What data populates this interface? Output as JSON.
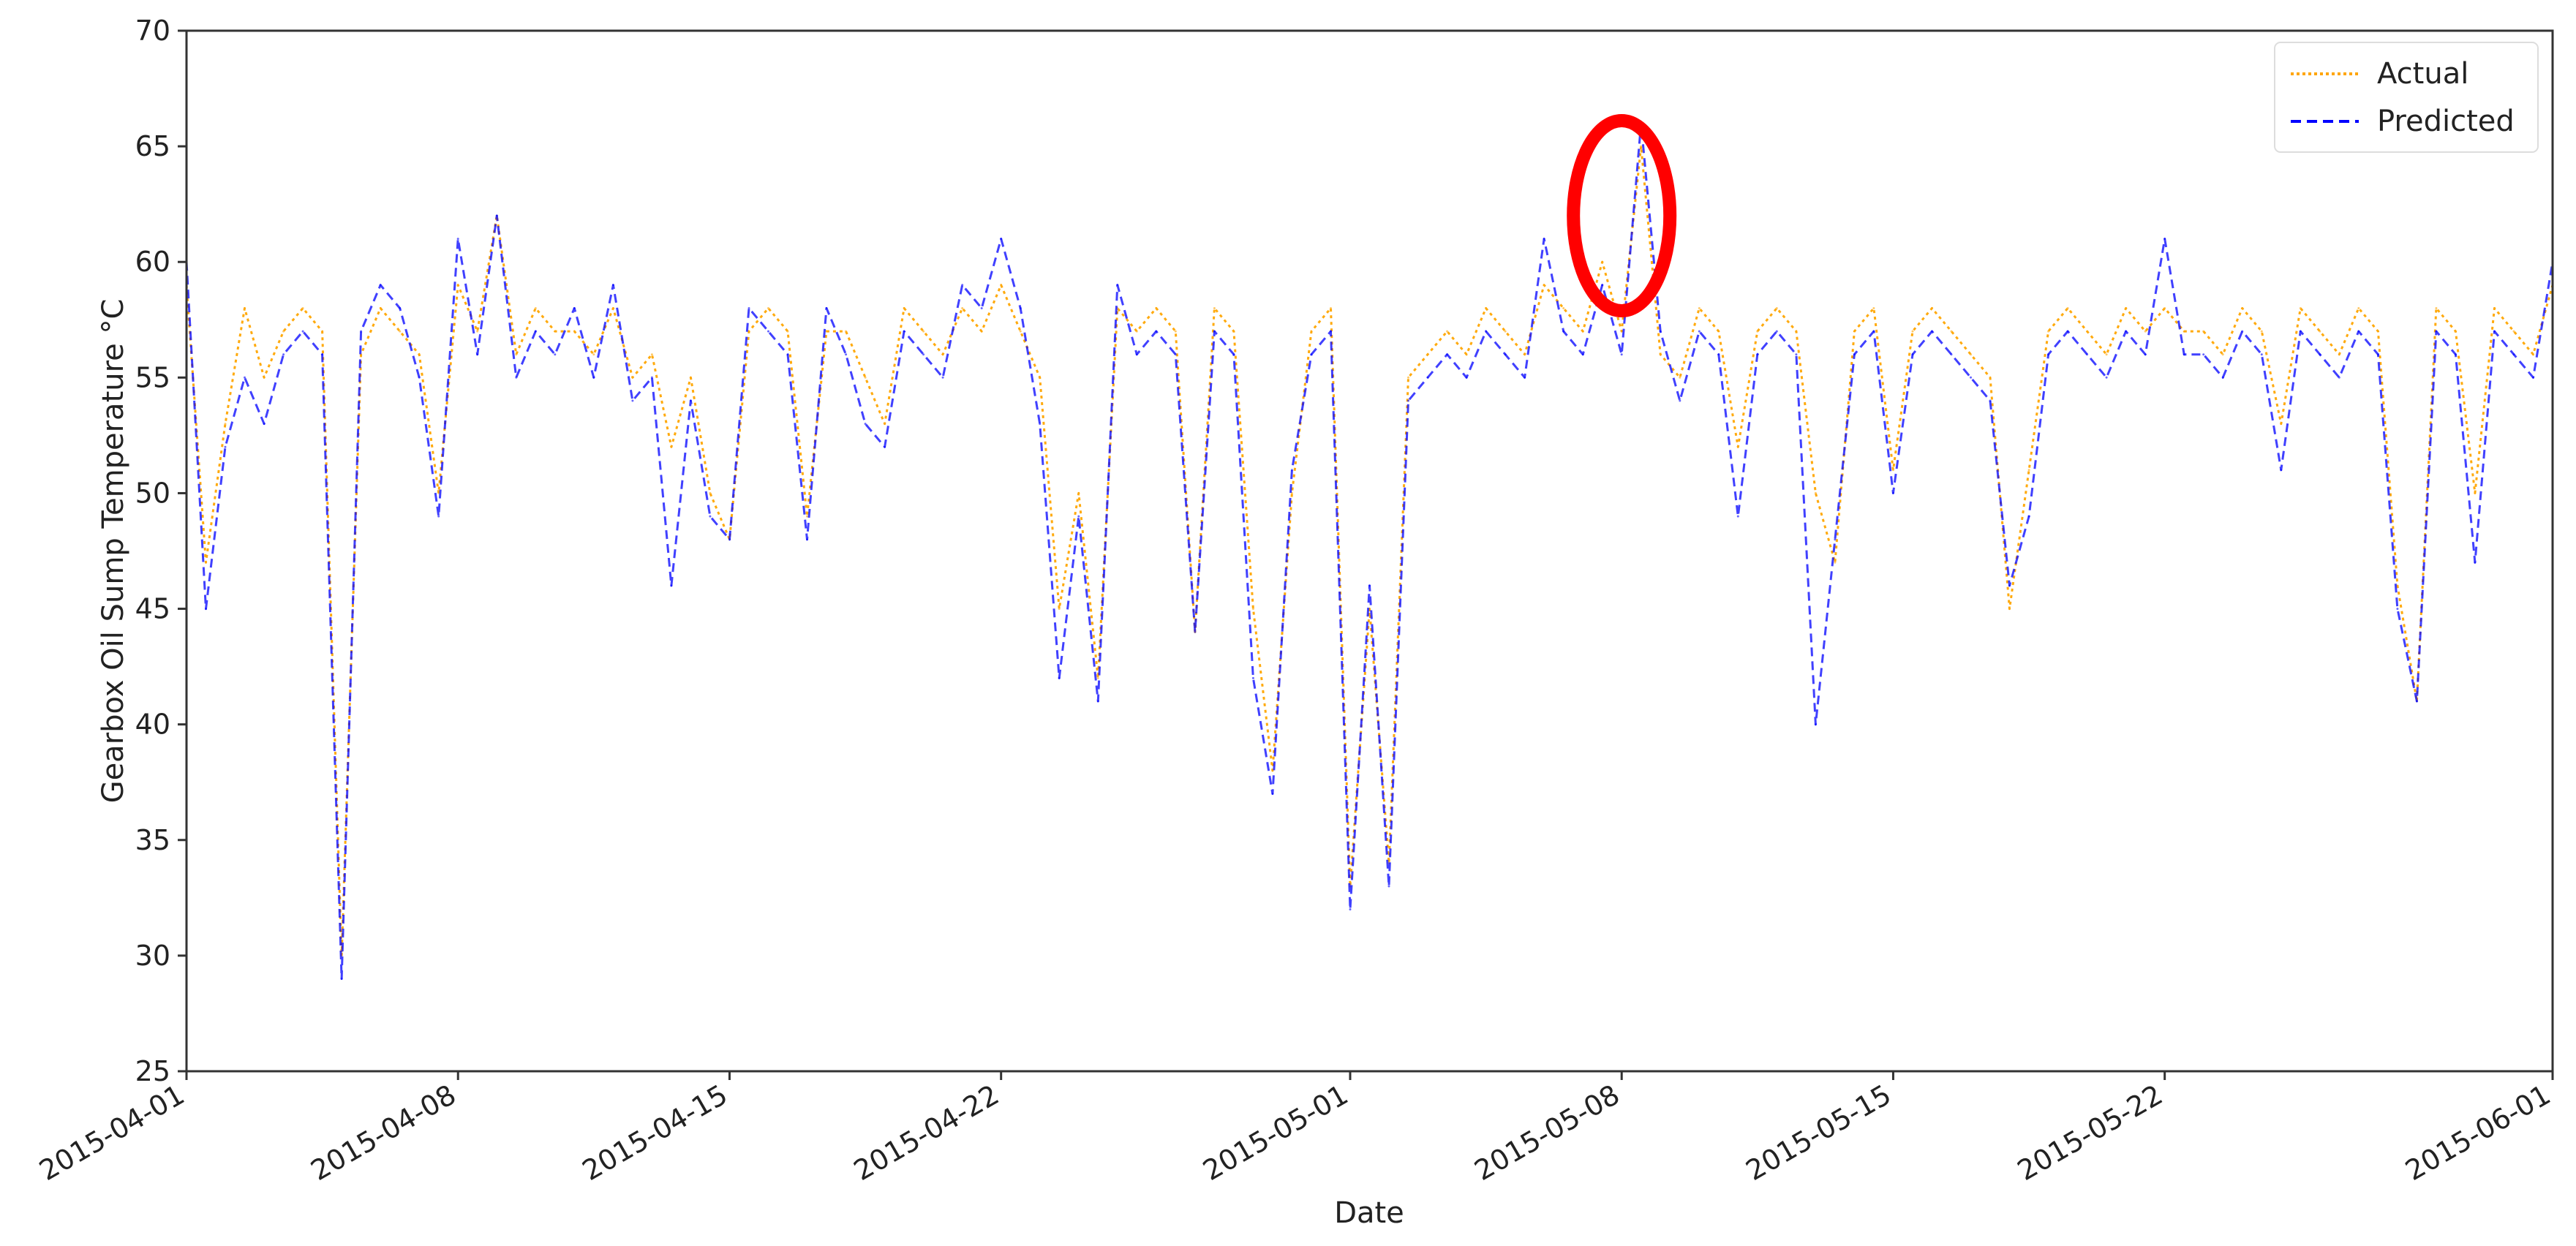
{
  "chart_data": {
    "type": "line",
    "title": "",
    "xlabel": "Date",
    "ylabel": "Gearbox Oil Sump Temperature °C",
    "xlim": [
      "2015-04-01",
      "2015-06-01"
    ],
    "ylim": [
      25,
      70
    ],
    "x_ticks": [
      "2015-04-01",
      "2015-04-08",
      "2015-04-15",
      "2015-04-22",
      "2015-05-01",
      "2015-05-08",
      "2015-05-15",
      "2015-05-22",
      "2015-06-01"
    ],
    "y_ticks": [
      25,
      30,
      35,
      40,
      45,
      50,
      55,
      60,
      65,
      70
    ],
    "grid": false,
    "legend": "top-right",
    "colors": {
      "actual": "#ffa500",
      "predicted": "#0000ff",
      "highlight": "#ff0000"
    },
    "series": [
      {
        "name": "Actual",
        "x": [
          "2015-04-01",
          "2015-04-01 12:00",
          "2015-04-02",
          "2015-04-02 12:00",
          "2015-04-03",
          "2015-04-03 12:00",
          "2015-04-04",
          "2015-04-04 12:00",
          "2015-04-05",
          "2015-04-05 12:00",
          "2015-04-06",
          "2015-04-06 12:00",
          "2015-04-07",
          "2015-04-07 12:00",
          "2015-04-08",
          "2015-04-08 12:00",
          "2015-04-09",
          "2015-04-09 12:00",
          "2015-04-10",
          "2015-04-10 12:00",
          "2015-04-11",
          "2015-04-11 12:00",
          "2015-04-12",
          "2015-04-12 12:00",
          "2015-04-13",
          "2015-04-13 12:00",
          "2015-04-14",
          "2015-04-14 12:00",
          "2015-04-15",
          "2015-04-15 12:00",
          "2015-04-16",
          "2015-04-16 12:00",
          "2015-04-17",
          "2015-04-17 12:00",
          "2015-04-18",
          "2015-04-18 12:00",
          "2015-04-19",
          "2015-04-19 12:00",
          "2015-04-20",
          "2015-04-20 12:00",
          "2015-04-21",
          "2015-04-21 12:00",
          "2015-04-22",
          "2015-04-22 12:00",
          "2015-04-23",
          "2015-04-23 12:00",
          "2015-04-24",
          "2015-04-24 12:00",
          "2015-04-25",
          "2015-04-25 12:00",
          "2015-04-26",
          "2015-04-26 12:00",
          "2015-04-27",
          "2015-04-27 12:00",
          "2015-04-28",
          "2015-04-28 12:00",
          "2015-04-29",
          "2015-04-29 12:00",
          "2015-04-30",
          "2015-04-30 12:00",
          "2015-05-01",
          "2015-05-01 12:00",
          "2015-05-02",
          "2015-05-02 12:00",
          "2015-05-03",
          "2015-05-03 12:00",
          "2015-05-04",
          "2015-05-04 12:00",
          "2015-05-05",
          "2015-05-05 12:00",
          "2015-05-06",
          "2015-05-06 12:00",
          "2015-05-07",
          "2015-05-07 12:00",
          "2015-05-08",
          "2015-05-08 12:00",
          "2015-05-09",
          "2015-05-09 12:00",
          "2015-05-10",
          "2015-05-10 12:00",
          "2015-05-11",
          "2015-05-11 12:00",
          "2015-05-12",
          "2015-05-12 12:00",
          "2015-05-13",
          "2015-05-13 12:00",
          "2015-05-14",
          "2015-05-14 12:00",
          "2015-05-15",
          "2015-05-15 12:00",
          "2015-05-16",
          "2015-05-16 12:00",
          "2015-05-17",
          "2015-05-17 12:00",
          "2015-05-18",
          "2015-05-18 12:00",
          "2015-05-19",
          "2015-05-19 12:00",
          "2015-05-20",
          "2015-05-20 12:00",
          "2015-05-21",
          "2015-05-21 12:00",
          "2015-05-22",
          "2015-05-22 12:00",
          "2015-05-23",
          "2015-05-23 12:00",
          "2015-05-24",
          "2015-05-24 12:00",
          "2015-05-25",
          "2015-05-25 12:00",
          "2015-05-26",
          "2015-05-26 12:00",
          "2015-05-27",
          "2015-05-27 12:00",
          "2015-05-28",
          "2015-05-28 12:00",
          "2015-05-29",
          "2015-05-29 12:00",
          "2015-05-30",
          "2015-05-30 12:00",
          "2015-05-31",
          "2015-05-31 12:00",
          "2015-06-01"
        ],
        "values": [
          59,
          47,
          53,
          58,
          55,
          57,
          58,
          57,
          30,
          56,
          58,
          57,
          56,
          50,
          59,
          57,
          62,
          56,
          58,
          57,
          57,
          56,
          58,
          55,
          56,
          52,
          55,
          50,
          48,
          57,
          58,
          57,
          49,
          57,
          57,
          55,
          53,
          58,
          57,
          56,
          58,
          57,
          59,
          57,
          55,
          45,
          50,
          42,
          58,
          57,
          58,
          57,
          44,
          58,
          57,
          45,
          38,
          50,
          57,
          58,
          33,
          45,
          34,
          55,
          56,
          57,
          56,
          58,
          57,
          56,
          59,
          58,
          57,
          60,
          57,
          65,
          56,
          55,
          58,
          57,
          52,
          57,
          58,
          57,
          50,
          47,
          57,
          58,
          51,
          57,
          58,
          57,
          56,
          55,
          45,
          51,
          57,
          58,
          57,
          56,
          58,
          57,
          58,
          57,
          57,
          56,
          58,
          57,
          53,
          58,
          57,
          56,
          58,
          57,
          46,
          41,
          58,
          57,
          50,
          58,
          57,
          56,
          59
        ]
      },
      {
        "name": "Predicted",
        "x": [
          "2015-04-01",
          "2015-04-01 12:00",
          "2015-04-02",
          "2015-04-02 12:00",
          "2015-04-03",
          "2015-04-03 12:00",
          "2015-04-04",
          "2015-04-04 12:00",
          "2015-04-05",
          "2015-04-05 12:00",
          "2015-04-06",
          "2015-04-06 12:00",
          "2015-04-07",
          "2015-04-07 12:00",
          "2015-04-08",
          "2015-04-08 12:00",
          "2015-04-09",
          "2015-04-09 12:00",
          "2015-04-10",
          "2015-04-10 12:00",
          "2015-04-11",
          "2015-04-11 12:00",
          "2015-04-12",
          "2015-04-12 12:00",
          "2015-04-13",
          "2015-04-13 12:00",
          "2015-04-14",
          "2015-04-14 12:00",
          "2015-04-15",
          "2015-04-15 12:00",
          "2015-04-16",
          "2015-04-16 12:00",
          "2015-04-17",
          "2015-04-17 12:00",
          "2015-04-18",
          "2015-04-18 12:00",
          "2015-04-19",
          "2015-04-19 12:00",
          "2015-04-20",
          "2015-04-20 12:00",
          "2015-04-21",
          "2015-04-21 12:00",
          "2015-04-22",
          "2015-04-22 12:00",
          "2015-04-23",
          "2015-04-23 12:00",
          "2015-04-24",
          "2015-04-24 12:00",
          "2015-04-25",
          "2015-04-25 12:00",
          "2015-04-26",
          "2015-04-26 12:00",
          "2015-04-27",
          "2015-04-27 12:00",
          "2015-04-28",
          "2015-04-28 12:00",
          "2015-04-29",
          "2015-04-29 12:00",
          "2015-04-30",
          "2015-04-30 12:00",
          "2015-05-01",
          "2015-05-01 12:00",
          "2015-05-02",
          "2015-05-02 12:00",
          "2015-05-03",
          "2015-05-03 12:00",
          "2015-05-04",
          "2015-05-04 12:00",
          "2015-05-05",
          "2015-05-05 12:00",
          "2015-05-06",
          "2015-05-06 12:00",
          "2015-05-07",
          "2015-05-07 12:00",
          "2015-05-08",
          "2015-05-08 12:00",
          "2015-05-09",
          "2015-05-09 12:00",
          "2015-05-10",
          "2015-05-10 12:00",
          "2015-05-11",
          "2015-05-11 12:00",
          "2015-05-12",
          "2015-05-12 12:00",
          "2015-05-13",
          "2015-05-13 12:00",
          "2015-05-14",
          "2015-05-14 12:00",
          "2015-05-15",
          "2015-05-15 12:00",
          "2015-05-16",
          "2015-05-16 12:00",
          "2015-05-17",
          "2015-05-17 12:00",
          "2015-05-18",
          "2015-05-18 12:00",
          "2015-05-19",
          "2015-05-19 12:00",
          "2015-05-20",
          "2015-05-20 12:00",
          "2015-05-21",
          "2015-05-21 12:00",
          "2015-05-22",
          "2015-05-22 12:00",
          "2015-05-23",
          "2015-05-23 12:00",
          "2015-05-24",
          "2015-05-24 12:00",
          "2015-05-25",
          "2015-05-25 12:00",
          "2015-05-26",
          "2015-05-26 12:00",
          "2015-05-27",
          "2015-05-27 12:00",
          "2015-05-28",
          "2015-05-28 12:00",
          "2015-05-29",
          "2015-05-29 12:00",
          "2015-05-30",
          "2015-05-30 12:00",
          "2015-05-31",
          "2015-05-31 12:00",
          "2015-06-01"
        ],
        "values": [
          60,
          45,
          52,
          55,
          53,
          56,
          57,
          56,
          29,
          57,
          59,
          58,
          55,
          49,
          61,
          56,
          62,
          55,
          57,
          56,
          58,
          55,
          59,
          54,
          55,
          46,
          54,
          49,
          48,
          58,
          57,
          56,
          48,
          58,
          56,
          53,
          52,
          57,
          56,
          55,
          59,
          58,
          61,
          58,
          53,
          42,
          49,
          41,
          59,
          56,
          57,
          56,
          44,
          57,
          56,
          42,
          37,
          51,
          56,
          57,
          32,
          46,
          33,
          54,
          55,
          56,
          55,
          57,
          56,
          55,
          61,
          57,
          56,
          59,
          56,
          66,
          57,
          54,
          57,
          56,
          49,
          56,
          57,
          56,
          40,
          48,
          56,
          57,
          50,
          56,
          57,
          56,
          55,
          54,
          46,
          49,
          56,
          57,
          56,
          55,
          57,
          56,
          61,
          56,
          56,
          55,
          57,
          56,
          51,
          57,
          56,
          55,
          57,
          56,
          45,
          41,
          57,
          56,
          47,
          57,
          56,
          55,
          60
        ]
      }
    ],
    "annotations": [
      {
        "type": "ellipse",
        "x": "2015-05-08",
        "y": 62,
        "color": "#ff0000"
      }
    ]
  }
}
